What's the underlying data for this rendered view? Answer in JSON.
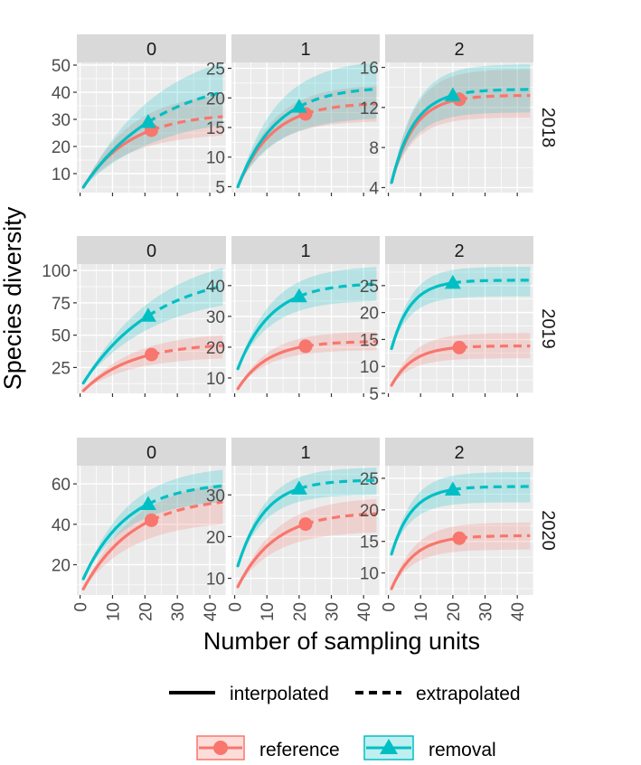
{
  "chart_data": {
    "type": "line",
    "title": "",
    "ylabel": "Species diversity",
    "xlabel": "Number of sampling units",
    "x_ticks": [
      0,
      10,
      20,
      30,
      40
    ],
    "xlim": [
      -1,
      45
    ],
    "facet_columns": [
      "0",
      "1",
      "2"
    ],
    "facet_rows": [
      "2018",
      "2019",
      "2020"
    ],
    "colors": {
      "reference": "#F8766D",
      "removal": "#00BFC4",
      "panel_bg": "#EBEBEB",
      "strip_bg": "#D9D9D9",
      "grid": "#FFFFFF"
    },
    "legend": {
      "linetype": [
        {
          "label": "interpolated",
          "style": "solid"
        },
        {
          "label": "extrapolated",
          "style": "dashed"
        }
      ],
      "groups": [
        {
          "label": "reference",
          "marker": "circle"
        },
        {
          "label": "removal",
          "marker": "triangle"
        }
      ]
    },
    "panels": [
      {
        "row": "2018",
        "col": "0",
        "ylim": [
          3,
          51
        ],
        "yticks": [
          10,
          20,
          30,
          40,
          50
        ],
        "series": [
          {
            "name": "reference",
            "n_obs": 22,
            "start": 5,
            "obs": 26,
            "end": 31,
            "ci_lo": 24,
            "ci_hi": 39
          },
          {
            "name": "removal",
            "n_obs": 21,
            "start": 5,
            "obs": 29,
            "end": 40,
            "ci_lo": 28,
            "ci_hi": 51
          }
        ]
      },
      {
        "row": "2018",
        "col": "1",
        "ylim": [
          4,
          26
        ],
        "yticks": [
          5,
          10,
          15,
          20,
          25
        ],
        "series": [
          {
            "name": "reference",
            "n_obs": 22,
            "start": 5,
            "obs": 17.3,
            "end": 19,
            "ci_lo": 16,
            "ci_hi": 22
          },
          {
            "name": "removal",
            "n_obs": 20,
            "start": 5,
            "obs": 18.5,
            "end": 21.5,
            "ci_lo": 16.5,
            "ci_hi": 26
          }
        ]
      },
      {
        "row": "2018",
        "col": "2",
        "ylim": [
          3.5,
          16.5
        ],
        "yticks": [
          4,
          8,
          12,
          16
        ],
        "series": [
          {
            "name": "reference",
            "n_obs": 22,
            "start": 4.5,
            "obs": 12.8,
            "end": 13.2,
            "ci_lo": 11,
            "ci_hi": 15.8
          },
          {
            "name": "removal",
            "n_obs": 20,
            "start": 4.5,
            "obs": 13.2,
            "end": 13.8,
            "ci_lo": 11.5,
            "ci_hi": 16.3
          }
        ]
      },
      {
        "row": "2019",
        "col": "0",
        "ylim": [
          5,
          105
        ],
        "yticks": [
          25,
          50,
          75,
          100
        ],
        "series": [
          {
            "name": "reference",
            "n_obs": 22,
            "start": 7,
            "obs": 35,
            "end": 42,
            "ci_lo": 32,
            "ci_hi": 50
          },
          {
            "name": "removal",
            "n_obs": 21,
            "start": 13,
            "obs": 65,
            "end": 88,
            "ci_lo": 73,
            "ci_hi": 102
          }
        ]
      },
      {
        "row": "2019",
        "col": "1",
        "ylim": [
          5,
          47
        ],
        "yticks": [
          10,
          20,
          30,
          40
        ],
        "series": [
          {
            "name": "reference",
            "n_obs": 22,
            "start": 6.5,
            "obs": 20.3,
            "end": 21.8,
            "ci_lo": 19,
            "ci_hi": 25
          },
          {
            "name": "removal",
            "n_obs": 20,
            "start": 13,
            "obs": 36.5,
            "end": 40.5,
            "ci_lo": 35,
            "ci_hi": 46
          }
        ]
      },
      {
        "row": "2019",
        "col": "2",
        "ylim": [
          5,
          29
        ],
        "yticks": [
          5,
          10,
          15,
          20,
          25
        ],
        "series": [
          {
            "name": "reference",
            "n_obs": 22,
            "start": 6.5,
            "obs": 13.5,
            "end": 13.8,
            "ci_lo": 11.5,
            "ci_hi": 16.2
          },
          {
            "name": "removal",
            "n_obs": 20,
            "start": 13.3,
            "obs": 25.5,
            "end": 26,
            "ci_lo": 23,
            "ci_hi": 28.5
          }
        ]
      },
      {
        "row": "2020",
        "col": "0",
        "ylim": [
          5,
          69
        ],
        "yticks": [
          20,
          40,
          60
        ],
        "series": [
          {
            "name": "reference",
            "n_obs": 22,
            "start": 8,
            "obs": 42,
            "end": 51,
            "ci_lo": 40,
            "ci_hi": 60
          },
          {
            "name": "removal",
            "n_obs": 21,
            "start": 13,
            "obs": 50,
            "end": 59,
            "ci_lo": 51,
            "ci_hi": 67
          }
        ]
      },
      {
        "row": "2020",
        "col": "1",
        "ylim": [
          6,
          37
        ],
        "yticks": [
          10,
          20,
          30
        ],
        "series": [
          {
            "name": "reference",
            "n_obs": 22,
            "start": 8,
            "obs": 23,
            "end": 25.5,
            "ci_lo": 21,
            "ci_hi": 29
          },
          {
            "name": "removal",
            "n_obs": 20,
            "start": 13,
            "obs": 31.5,
            "end": 33.5,
            "ci_lo": 30,
            "ci_hi": 36.5
          }
        ]
      },
      {
        "row": "2020",
        "col": "2",
        "ylim": [
          6.5,
          27
        ],
        "yticks": [
          10,
          15,
          20,
          25
        ],
        "series": [
          {
            "name": "reference",
            "n_obs": 22,
            "start": 7.5,
            "obs": 15.5,
            "end": 15.9,
            "ci_lo": 13.7,
            "ci_hi": 18
          },
          {
            "name": "removal",
            "n_obs": 20,
            "start": 13,
            "obs": 23.2,
            "end": 23.7,
            "ci_lo": 21.2,
            "ci_hi": 26
          }
        ]
      }
    ]
  }
}
